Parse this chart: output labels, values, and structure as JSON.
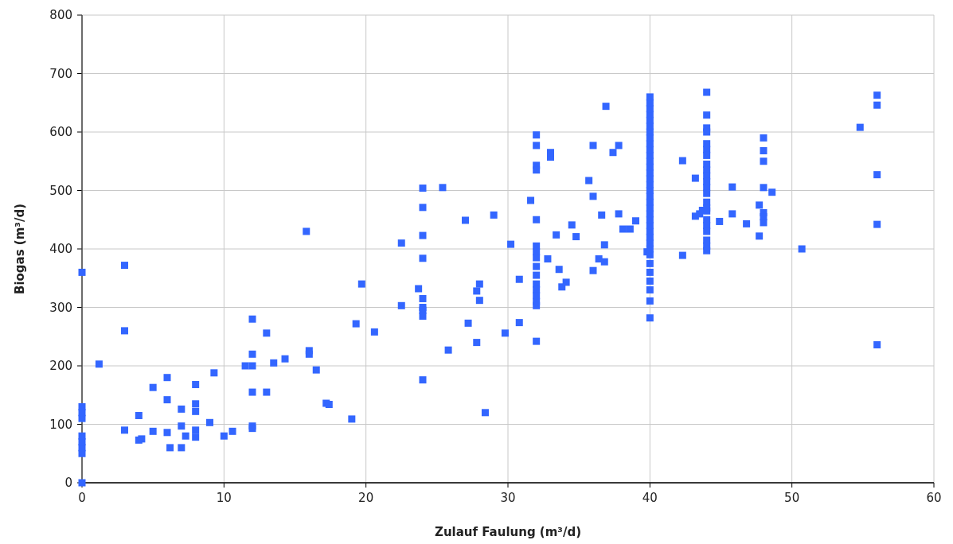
{
  "chart_data": {
    "type": "scatter",
    "xlabel": "Zulauf Faulung (m³/d)",
    "ylabel": "Biogas (m³/d)",
    "xlim": [
      0,
      60
    ],
    "ylim": [
      0,
      800
    ],
    "xticks": [
      0,
      10,
      20,
      30,
      40,
      50,
      60
    ],
    "yticks": [
      0,
      100,
      200,
      300,
      400,
      500,
      600,
      700,
      800
    ],
    "grid": true,
    "marker": "square",
    "series": [
      {
        "color": "#3366ff",
        "x": [
          0,
          0,
          0,
          0,
          0,
          0,
          0,
          0,
          0,
          3,
          3,
          3,
          1.2,
          4,
          4,
          4.2,
          5,
          5,
          6,
          6,
          6,
          6.2,
          7,
          7,
          7,
          7.3,
          8,
          8,
          8,
          8,
          8,
          9,
          9.3,
          10,
          10.6,
          11.5,
          12,
          12,
          12,
          12,
          12,
          12,
          13,
          13,
          13.5,
          14.3,
          15.8,
          16,
          16,
          16.5,
          17.2,
          17.4,
          19,
          19.3,
          19.7,
          20.6,
          22.5,
          22.5,
          23.7,
          24,
          24,
          24,
          24,
          24,
          24,
          24,
          24,
          24,
          25.4,
          25.8,
          27,
          27.2,
          27.8,
          27.8,
          28,
          28,
          28.4,
          29,
          29.8,
          30.2,
          30.8,
          30.8,
          31.6,
          32,
          32,
          32,
          32,
          32,
          32,
          32,
          32,
          32,
          32,
          32,
          32,
          32,
          32,
          32,
          32,
          32.8,
          33,
          33,
          33.4,
          33.6,
          33.8,
          34.1,
          34.5,
          34.8,
          35.7,
          36,
          36,
          36,
          36.4,
          36.6,
          36.8,
          36.8,
          36.9,
          37.4,
          37.8,
          37.8,
          38.1,
          38.6,
          39,
          39.8,
          40,
          40,
          40,
          40,
          40,
          40,
          40,
          40,
          40,
          40,
          40,
          40,
          40,
          40,
          40,
          40,
          40,
          40,
          40,
          40,
          40,
          40,
          40,
          40,
          40,
          40,
          40,
          40,
          40,
          40,
          40,
          40,
          40,
          40,
          42.3,
          42.3,
          43.2,
          43.2,
          43.5,
          43.7,
          44,
          44,
          44,
          44,
          44,
          44,
          44,
          44,
          44,
          44,
          44,
          44,
          44,
          44,
          44,
          44,
          44,
          44,
          44,
          44,
          44,
          44,
          44.9,
          45.8,
          45.8,
          46.8,
          47.7,
          47.7,
          48,
          48,
          48,
          48,
          48,
          48,
          48,
          48.6,
          50.7,
          54.8,
          56,
          56,
          56,
          56,
          56
        ],
        "values": [
          360,
          0,
          50,
          60,
          70,
          80,
          110,
          120,
          130,
          372,
          260,
          90,
          203,
          115,
          73,
          75,
          163,
          88,
          180,
          142,
          86,
          60,
          126,
          97,
          60,
          80,
          168,
          135,
          122,
          90,
          78,
          103,
          188,
          80,
          88,
          200,
          280,
          220,
          200,
          155,
          97,
          93,
          256,
          155,
          205,
          212,
          430,
          226,
          220,
          193,
          136,
          134,
          109,
          272,
          340,
          258,
          410,
          303,
          332,
          504,
          471,
          423,
          384,
          315,
          300,
          295,
          285,
          176,
          505,
          227,
          449,
          273,
          328,
          240,
          340,
          312,
          120,
          458,
          256,
          408,
          348,
          274,
          483,
          595,
          577,
          543,
          535,
          450,
          405,
          395,
          385,
          370,
          355,
          340,
          330,
          320,
          310,
          303,
          242,
          383,
          557,
          565,
          424,
          365,
          335,
          343,
          441,
          421,
          517,
          577,
          490,
          363,
          383,
          458,
          407,
          378,
          644,
          565,
          577,
          460,
          434,
          434,
          448,
          395,
          282,
          311,
          330,
          345,
          360,
          375,
          390,
          400,
          410,
          420,
          430,
          440,
          450,
          460,
          470,
          480,
          490,
          500,
          510,
          520,
          530,
          540,
          550,
          560,
          570,
          580,
          590,
          600,
          610,
          620,
          630,
          640,
          650,
          660,
          551,
          389,
          456,
          521,
          460,
          466,
          668,
          629,
          607,
          600,
          580,
          570,
          560,
          545,
          535,
          525,
          515,
          505,
          495,
          480,
          470,
          465,
          450,
          440,
          430,
          415,
          405,
          397,
          447,
          506,
          460,
          443,
          475,
          422,
          590,
          568,
          550,
          505,
          462,
          455,
          445,
          497,
          400,
          608,
          663,
          646,
          527,
          442,
          236
        ]
      }
    ]
  }
}
